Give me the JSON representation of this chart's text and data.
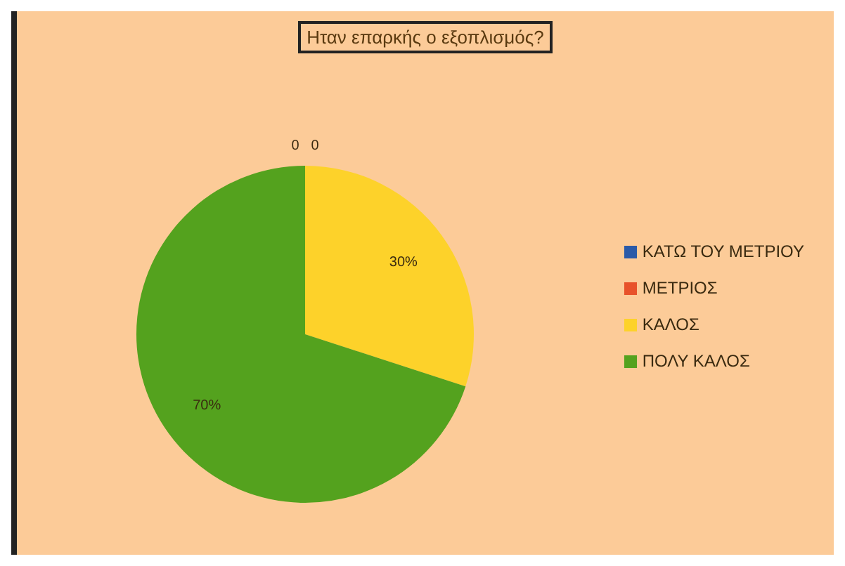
{
  "chart_data": {
    "type": "pie",
    "title": "Ηταν επαρκής ο εξοπλισμός?",
    "categories": [
      "ΚΑΤΩ ΤΟΥ ΜΕΤΡΙΟΥ",
      "ΜΕΤΡΙΟΣ",
      "ΚΑΛΟΣ",
      "ΠΟΛΥ ΚΑΛΟΣ"
    ],
    "values": [
      0,
      0,
      30,
      70
    ],
    "value_labels": [
      "0",
      "0",
      "30%",
      "70%"
    ],
    "colors": [
      "#2a5aa8",
      "#e8522a",
      "#fdd22a",
      "#54a21e"
    ],
    "legend": "right"
  }
}
